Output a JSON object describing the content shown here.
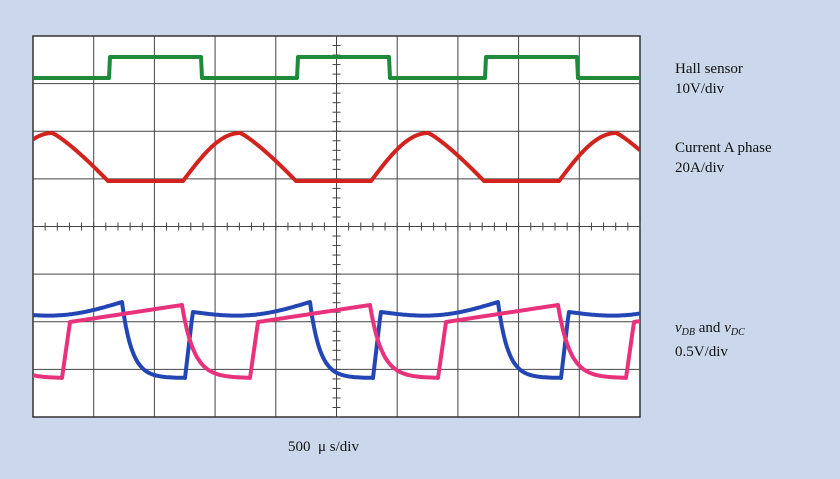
{
  "channels": [
    {
      "name": "Hall sensor",
      "scale": "10V/div"
    },
    {
      "name": "Current A phase",
      "scale": "20A/div"
    },
    {
      "var1": "v",
      "sub1": "DB",
      "joiner": " and ",
      "var2": "v",
      "sub2": "DC",
      "scale": "0.5V/div"
    }
  ],
  "time_scale": "500  μ s/div"
}
